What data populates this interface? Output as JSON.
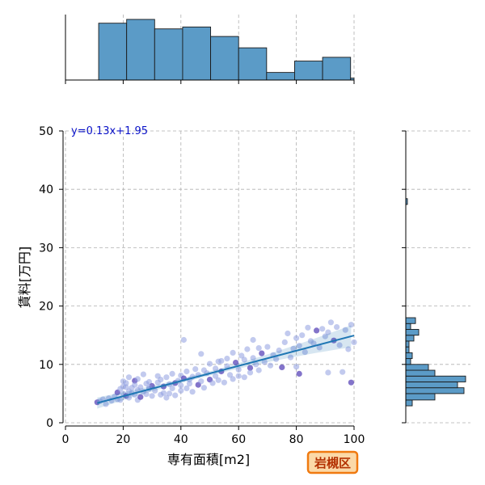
{
  "chart_data": {
    "type": "scatter",
    "xlabel": "専有面積[m2]",
    "ylabel": "賃料[万円]",
    "xlim": [
      0,
      100
    ],
    "ylim": [
      0,
      50
    ],
    "x_ticks": [
      0,
      20,
      40,
      60,
      80,
      100
    ],
    "y_ticks": [
      0,
      10,
      20,
      30,
      40,
      50
    ],
    "grid": true,
    "regression": {
      "equation": "y=0.13x+1.95",
      "slope": 0.13,
      "intercept": 1.95,
      "x_range": [
        11,
        100
      ]
    },
    "badge": "岩槻区",
    "colors": {
      "points": "#8f9fe0",
      "points_dense": "#5a45b8",
      "line": "#1f77b4",
      "bars": "#5b9bc7",
      "badge_border": "#f07a10",
      "badge_fill": "#fbd9a8",
      "equation": "#0a12c8"
    },
    "x_hist": {
      "edges": [
        0,
        11.5,
        21.2,
        30.9,
        40.6,
        50.3,
        60.0,
        69.7,
        79.4,
        89.1,
        98.8,
        100
      ],
      "counts": [
        0,
        30,
        32,
        27,
        28,
        23,
        17,
        4,
        10,
        12,
        1
      ]
    },
    "y_hist": {
      "bins": [
        {
          "y0": 2.9,
          "y1": 3.9,
          "count": 4
        },
        {
          "y0": 3.9,
          "y1": 5.0,
          "count": 18
        },
        {
          "y0": 5.0,
          "y1": 6.0,
          "count": 36
        },
        {
          "y0": 6.0,
          "y1": 7.0,
          "count": 32
        },
        {
          "y0": 7.0,
          "y1": 8.0,
          "count": 37
        },
        {
          "y0": 8.0,
          "y1": 9.0,
          "count": 18
        },
        {
          "y0": 9.0,
          "y1": 10.0,
          "count": 14
        },
        {
          "y0": 10.0,
          "y1": 11.0,
          "count": 3
        },
        {
          "y0": 11.0,
          "y1": 12.0,
          "count": 4
        },
        {
          "y0": 12.0,
          "y1": 13.0,
          "count": 2
        },
        {
          "y0": 13.0,
          "y1": 14.0,
          "count": 2
        },
        {
          "y0": 14.0,
          "y1": 15.0,
          "count": 5
        },
        {
          "y0": 15.0,
          "y1": 16.0,
          "count": 8
        },
        {
          "y0": 16.0,
          "y1": 17.0,
          "count": 3
        },
        {
          "y0": 17.0,
          "y1": 18.0,
          "count": 6
        },
        {
          "y0": 37.4,
          "y1": 38.4,
          "count": 1
        }
      ]
    },
    "points": [
      [
        11,
        3.5
      ],
      [
        12,
        3.7
      ],
      [
        13,
        4.0
      ],
      [
        14,
        3.2
      ],
      [
        15,
        4.2
      ],
      [
        16,
        3.8
      ],
      [
        17,
        4.5
      ],
      [
        18,
        5.2
      ],
      [
        18,
        4.0
      ],
      [
        19,
        5.8
      ],
      [
        19,
        3.9
      ],
      [
        20,
        6.2
      ],
      [
        20,
        5.0
      ],
      [
        20,
        7.1
      ],
      [
        21,
        4.6
      ],
      [
        21,
        6.8
      ],
      [
        22,
        5.4
      ],
      [
        22,
        7.8
      ],
      [
        22,
        4.3
      ],
      [
        23,
        6.0
      ],
      [
        23,
        5.1
      ],
      [
        24,
        7.2
      ],
      [
        24,
        4.8
      ],
      [
        24,
        6.5
      ],
      [
        25,
        5.6
      ],
      [
        25,
        3.9
      ],
      [
        25,
        7.5
      ],
      [
        26,
        6.1
      ],
      [
        26,
        4.4
      ],
      [
        27,
        8.3
      ],
      [
        27,
        5.3
      ],
      [
        28,
        6.7
      ],
      [
        28,
        4.9
      ],
      [
        29,
        5.8
      ],
      [
        29,
        7.0
      ],
      [
        30,
        6.3
      ],
      [
        30,
        4.6
      ],
      [
        31,
        5.5
      ],
      [
        32,
        8.0
      ],
      [
        32,
        6.9
      ],
      [
        33,
        4.8
      ],
      [
        33,
        7.4
      ],
      [
        34,
        6.2
      ],
      [
        34,
        5.1
      ],
      [
        35,
        7.8
      ],
      [
        35,
        4.3
      ],
      [
        36,
        6.6
      ],
      [
        37,
        5.9
      ],
      [
        37,
        8.4
      ],
      [
        38,
        6.8
      ],
      [
        38,
        4.7
      ],
      [
        39,
        7.2
      ],
      [
        40,
        8.1
      ],
      [
        40,
        5.5
      ],
      [
        40,
        6.4
      ],
      [
        41,
        14.2
      ],
      [
        41,
        7.6
      ],
      [
        42,
        5.9
      ],
      [
        42,
        8.8
      ],
      [
        43,
        6.7
      ],
      [
        44,
        7.9
      ],
      [
        44,
        5.3
      ],
      [
        45,
        9.2
      ],
      [
        46,
        6.5
      ],
      [
        46,
        8.2
      ],
      [
        47,
        11.8
      ],
      [
        47,
        7.1
      ],
      [
        48,
        9.0
      ],
      [
        48,
        6.0
      ],
      [
        49,
        8.5
      ],
      [
        50,
        7.4
      ],
      [
        50,
        10.1
      ],
      [
        51,
        6.8
      ],
      [
        52,
        9.3
      ],
      [
        52,
        8.0
      ],
      [
        53,
        7.3
      ],
      [
        54,
        10.6
      ],
      [
        54,
        8.8
      ],
      [
        55,
        6.9
      ],
      [
        56,
        9.7
      ],
      [
        56,
        11.0
      ],
      [
        57,
        8.2
      ],
      [
        58,
        12.0
      ],
      [
        58,
        7.5
      ],
      [
        59,
        10.3
      ],
      [
        60,
        9.1
      ],
      [
        60,
        8.0
      ],
      [
        61,
        11.5
      ],
      [
        62,
        10.8
      ],
      [
        62,
        7.8
      ],
      [
        63,
        12.6
      ],
      [
        64,
        9.4
      ],
      [
        64,
        8.6
      ],
      [
        65,
        14.2
      ],
      [
        65,
        11.1
      ],
      [
        66,
        10.0
      ],
      [
        67,
        12.8
      ],
      [
        67,
        9.0
      ],
      [
        68,
        11.9
      ],
      [
        69,
        10.4
      ],
      [
        70,
        13.0
      ],
      [
        71,
        9.8
      ],
      [
        72,
        11.6
      ],
      [
        73,
        10.9
      ],
      [
        74,
        12.4
      ],
      [
        75,
        9.5
      ],
      [
        76,
        13.8
      ],
      [
        77,
        15.3
      ],
      [
        78,
        11.2
      ],
      [
        79,
        12.7
      ],
      [
        80,
        14.5
      ],
      [
        80,
        9.6
      ],
      [
        81,
        8.4
      ],
      [
        81,
        13.2
      ],
      [
        82,
        15.0
      ],
      [
        83,
        12.1
      ],
      [
        84,
        16.3
      ],
      [
        85,
        14.0
      ],
      [
        86,
        13.6
      ],
      [
        87,
        15.8
      ],
      [
        88,
        12.9
      ],
      [
        89,
        16.1
      ],
      [
        90,
        14.8
      ],
      [
        91,
        8.6
      ],
      [
        91,
        15.5
      ],
      [
        92,
        17.2
      ],
      [
        93,
        14.1
      ],
      [
        94,
        16.4
      ],
      [
        95,
        13.3
      ],
      [
        96,
        8.7
      ],
      [
        97,
        15.9
      ],
      [
        98,
        12.6
      ],
      [
        99,
        16.8
      ],
      [
        99,
        6.9
      ],
      [
        100,
        13.8
      ],
      [
        29,
        6.0
      ],
      [
        36,
        5.0
      ],
      [
        43,
        7.4
      ],
      [
        21,
        6.1
      ],
      [
        53,
        10.5
      ]
    ]
  }
}
